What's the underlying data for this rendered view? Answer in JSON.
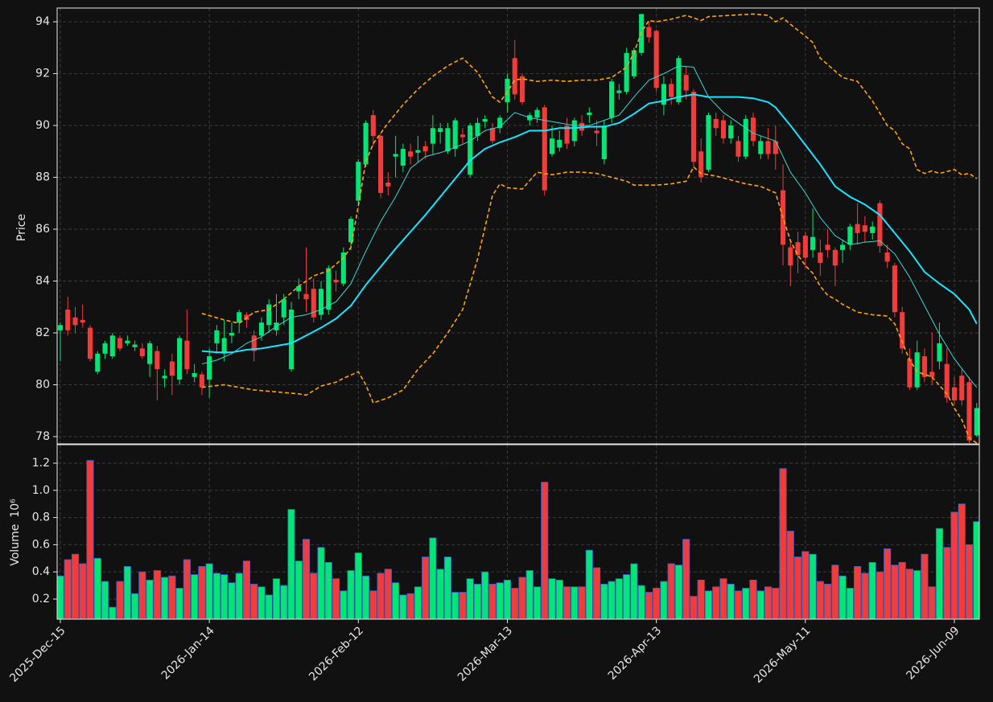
{
  "chart_data": [
    {
      "type": "candlestick",
      "ylabel": "Price",
      "xlim": [
        -0.43,
        123.35
      ],
      "ylim": [
        77.72,
        94.53
      ],
      "yticks": [
        78,
        80,
        82,
        84,
        86,
        88,
        90,
        92,
        94
      ],
      "grid": true,
      "up_color": "#00e676",
      "down_color": "#f23c3c",
      "open": [
        82.1,
        82.9,
        82.6,
        82.5,
        82.2,
        80.5,
        81.2,
        81.1,
        81.8,
        81.6,
        81.45,
        81.4,
        80.8,
        81.3,
        80.25,
        80.9,
        80.2,
        81.7,
        80.3,
        80.4,
        80.2,
        81.6,
        81.2,
        81.9,
        82.4,
        82.7,
        81.9,
        81.9,
        82.3,
        82.1,
        82.6,
        80.6,
        83.6,
        83.5,
        83.7,
        82.7,
        82.9,
        84.05,
        83.9,
        85.5,
        87.1,
        88.5,
        90.4,
        89.6,
        87.8,
        88.8,
        88.45,
        89.0,
        88.95,
        89.2,
        89.3,
        89.75,
        89.0,
        89.1,
        89.65,
        88.1,
        89.6,
        90.15,
        89.9,
        89.9,
        90.9,
        92.6,
        91.9,
        90.2,
        90.3,
        90.7,
        88.9,
        89.15,
        90.0,
        89.4,
        90.1,
        90.4,
        89.8,
        88.7,
        90.3,
        91.25,
        91.3,
        91.9,
        92.8,
        93.8,
        93.65,
        90.8,
        91.6,
        90.9,
        91.95,
        91.3,
        89.0,
        88.3,
        90.25,
        90.2,
        89.5,
        89.4,
        88.8,
        90.3,
        88.9,
        89.4,
        89.4,
        87.5,
        85.3,
        85.5,
        85.75,
        85.2,
        85.1,
        85.4,
        85.2,
        85.2,
        85.4,
        86.2,
        86.15,
        85.85,
        87.0,
        85.1,
        84.6,
        82.8,
        81.0,
        79.9,
        81.1,
        80.5,
        80.9,
        80.8,
        79.9,
        80.35,
        80.1,
        78.05
      ],
      "high": [
        82.4,
        83.4,
        83.0,
        83.1,
        82.3,
        81.3,
        81.7,
        82.0,
        81.9,
        81.9,
        81.7,
        81.6,
        81.7,
        81.5,
        80.6,
        81.2,
        81.9,
        82.9,
        80.8,
        80.5,
        81.4,
        82.3,
        82.5,
        82.4,
        82.9,
        82.8,
        82.1,
        82.6,
        83.3,
        83.5,
        83.5,
        83.2,
        84.1,
        85.3,
        84.1,
        84.0,
        84.6,
        84.4,
        85.3,
        86.5,
        88.7,
        90.2,
        90.6,
        89.7,
        88.2,
        89.6,
        89.3,
        89.3,
        89.6,
        89.4,
        90.4,
        90.1,
        90.1,
        90.3,
        89.9,
        90.1,
        90.3,
        90.4,
        90.1,
        90.4,
        92.0,
        93.3,
        92.0,
        90.5,
        90.7,
        90.8,
        90.0,
        89.8,
        90.3,
        90.3,
        90.4,
        90.7,
        90.2,
        90.2,
        91.8,
        91.6,
        93.0,
        93.0,
        94.3,
        94.0,
        93.7,
        91.9,
        91.8,
        92.7,
        92.3,
        91.4,
        89.5,
        90.5,
        90.5,
        90.4,
        90.2,
        89.6,
        90.4,
        90.5,
        89.6,
        89.9,
        90.0,
        88.5,
        85.5,
        85.9,
        85.9,
        86.8,
        85.6,
        86.0,
        85.3,
        85.6,
        86.2,
        87.0,
        86.5,
        86.3,
        87.1,
        85.4,
        84.7,
        83.0,
        81.4,
        81.7,
        81.4,
        82.0,
        82.4,
        81.4,
        80.3,
        80.6,
        80.3,
        79.3
      ],
      "low": [
        80.9,
        81.9,
        82.0,
        82.2,
        80.9,
        80.4,
        81.0,
        81.0,
        81.3,
        81.5,
        81.3,
        81.0,
        80.3,
        79.4,
        79.9,
        79.6,
        80.0,
        80.4,
        80.1,
        79.6,
        79.5,
        81.2,
        80.9,
        81.6,
        82.0,
        82.2,
        80.9,
        81.7,
        82.0,
        81.9,
        82.3,
        80.5,
        83.3,
        82.8,
        82.4,
        82.5,
        82.7,
        83.6,
        83.8,
        85.2,
        86.9,
        88.4,
        89.2,
        87.2,
        87.3,
        88.0,
        88.2,
        88.5,
        88.6,
        88.7,
        88.9,
        89.3,
        88.9,
        88.8,
        89.3,
        88.0,
        89.4,
        89.9,
        89.3,
        89.7,
        90.5,
        91.0,
        90.8,
        90.0,
        90.1,
        87.3,
        88.8,
        89.0,
        89.1,
        89.2,
        89.6,
        90.1,
        89.2,
        88.5,
        90.1,
        91.0,
        91.2,
        91.8,
        92.7,
        93.2,
        91.3,
        90.4,
        90.8,
        90.8,
        91.0,
        88.4,
        87.8,
        88.2,
        89.6,
        89.3,
        89.3,
        88.6,
        88.7,
        89.2,
        88.7,
        88.7,
        88.3,
        84.6,
        83.8,
        84.3,
        84.5,
        84.9,
        84.2,
        84.9,
        83.8,
        84.7,
        85.2,
        85.4,
        85.5,
        85.6,
        85.1,
        84.5,
        82.6,
        81.2,
        79.8,
        79.8,
        80.1,
        80.0,
        80.6,
        79.3,
        79.2,
        79.2,
        77.75,
        78.0
      ],
      "close": [
        82.3,
        82.1,
        82.3,
        82.4,
        81.0,
        81.2,
        81.6,
        81.9,
        81.4,
        81.7,
        81.55,
        81.1,
        81.6,
        80.6,
        80.35,
        80.35,
        81.8,
        80.6,
        80.45,
        79.9,
        81.1,
        82.1,
        81.8,
        82.0,
        82.8,
        82.5,
        81.3,
        82.4,
        83.1,
        82.4,
        83.3,
        82.9,
        83.8,
        83.3,
        82.6,
        83.7,
        84.5,
        83.95,
        85.1,
        86.4,
        88.6,
        90.1,
        89.6,
        87.4,
        87.65,
        88.9,
        89.1,
        88.8,
        89.05,
        89.0,
        89.9,
        89.9,
        89.9,
        90.2,
        89.55,
        90.0,
        90.1,
        90.25,
        89.4,
        90.3,
        91.8,
        91.2,
        90.9,
        90.4,
        90.6,
        87.5,
        89.5,
        89.45,
        89.3,
        90.2,
        89.8,
        90.5,
        89.7,
        90.0,
        91.7,
        91.35,
        92.8,
        92.9,
        94.3,
        93.4,
        91.45,
        91.6,
        91.1,
        92.6,
        91.35,
        88.6,
        88.0,
        90.4,
        89.9,
        89.5,
        90.0,
        88.8,
        90.25,
        89.4,
        89.4,
        88.9,
        88.9,
        85.4,
        84.6,
        85.0,
        84.9,
        85.7,
        84.7,
        85.2,
        84.6,
        85.4,
        86.1,
        85.85,
        85.9,
        86.1,
        85.35,
        84.75,
        82.8,
        81.4,
        79.9,
        81.25,
        80.3,
        80.3,
        81.6,
        79.5,
        79.4,
        79.4,
        77.85,
        79.1
      ],
      "lines": [
        {
          "color": "#ffa500",
          "dashed": true,
          "width": 1.6,
          "x": [
            19,
            22,
            24,
            26,
            28,
            30,
            32,
            34,
            36,
            38,
            39,
            40,
            41,
            42,
            44,
            46,
            48,
            50,
            52,
            54,
            56,
            58,
            59,
            60,
            61,
            62,
            64,
            66,
            68,
            70,
            72,
            74,
            76,
            77,
            78,
            79,
            80,
            82,
            84,
            86,
            87,
            90,
            93,
            95,
            96,
            97,
            98,
            100,
            101,
            102,
            104,
            105,
            107,
            109,
            111,
            112,
            113,
            114,
            115,
            116,
            117,
            118,
            120,
            121,
            122,
            123
          ],
          "values": [
            82.75,
            82.5,
            82.37,
            82.8,
            82.9,
            83.3,
            83.8,
            84.2,
            84.4,
            84.9,
            85.3,
            86.9,
            88.6,
            89.3,
            90.1,
            90.8,
            91.4,
            91.9,
            92.3,
            92.6,
            92.05,
            91.1,
            90.9,
            91.3,
            91.75,
            91.8,
            91.7,
            91.75,
            91.7,
            91.75,
            91.75,
            91.85,
            92.25,
            92.8,
            93.6,
            94.05,
            94.0,
            94.1,
            94.25,
            94.05,
            94.2,
            94.25,
            94.3,
            94.25,
            94.0,
            94.15,
            93.9,
            93.45,
            93.2,
            92.6,
            92.1,
            91.85,
            91.7,
            90.95,
            90.0,
            89.8,
            89.3,
            89.1,
            88.3,
            88.15,
            88.25,
            88.15,
            88.3,
            88.1,
            88.15,
            87.95
          ]
        },
        {
          "color": "#ffa500",
          "dashed": true,
          "width": 1.6,
          "x": [
            19,
            22,
            24,
            26,
            28,
            30,
            32,
            33,
            35,
            37,
            38,
            40,
            41,
            42,
            44,
            46,
            48,
            50,
            52,
            54,
            56,
            58,
            59,
            60,
            62,
            64,
            66,
            68,
            70,
            72,
            74,
            76,
            77,
            80,
            82,
            84,
            85,
            86,
            88,
            90,
            92,
            94,
            96,
            97,
            98,
            99,
            100,
            101,
            102,
            103,
            104,
            105,
            107,
            109,
            111,
            112,
            113,
            114,
            115,
            117,
            119,
            120,
            121,
            122,
            123
          ],
          "values": [
            79.9,
            80.0,
            79.9,
            79.8,
            79.75,
            79.7,
            79.65,
            79.6,
            79.95,
            80.1,
            80.25,
            80.5,
            80.0,
            79.3,
            79.5,
            79.8,
            80.6,
            81.2,
            82.0,
            82.9,
            84.85,
            87.3,
            87.75,
            87.6,
            87.55,
            88.2,
            88.1,
            88.2,
            88.2,
            88.15,
            88.0,
            87.85,
            87.7,
            87.7,
            87.75,
            87.85,
            88.4,
            88.15,
            88.05,
            87.9,
            87.75,
            87.65,
            87.4,
            86.45,
            85.55,
            85.0,
            84.6,
            84.3,
            83.8,
            83.45,
            83.3,
            83.1,
            82.8,
            82.7,
            82.65,
            82.35,
            81.65,
            80.95,
            80.5,
            80.3,
            79.65,
            79.1,
            78.65,
            77.95,
            77.75
          ]
        },
        {
          "color": "#3dd6d0",
          "dashed": false,
          "width": 1,
          "x": [
            19,
            21,
            23,
            25,
            27,
            29,
            31,
            33,
            35,
            37,
            39,
            41,
            43,
            45,
            47,
            49,
            51,
            53,
            55,
            57,
            59,
            61,
            63,
            65,
            67,
            69,
            71,
            73,
            75,
            77,
            79,
            81,
            83,
            85,
            87,
            89,
            91,
            93,
            95,
            96,
            98,
            100,
            102,
            104,
            106,
            108,
            110,
            112,
            114,
            116,
            118,
            120,
            122,
            123
          ],
          "values": [
            80.8,
            80.95,
            81.2,
            81.6,
            81.85,
            82.25,
            82.6,
            82.7,
            82.9,
            83.2,
            83.9,
            85.15,
            86.3,
            87.25,
            88.35,
            88.8,
            88.95,
            89.15,
            89.4,
            89.8,
            89.95,
            90.5,
            90.3,
            90.2,
            90.1,
            90.0,
            90.0,
            90.2,
            90.4,
            91.1,
            91.75,
            92.0,
            92.3,
            92.25,
            91.1,
            90.5,
            90.1,
            89.7,
            89.5,
            89.4,
            88.2,
            87.4,
            86.45,
            85.75,
            85.4,
            85.5,
            85.55,
            85.05,
            84.15,
            83.05,
            81.95,
            81.0,
            80.25,
            79.9
          ]
        },
        {
          "color": "#18e4ff",
          "dashed": false,
          "width": 2,
          "x": [
            19,
            21,
            23,
            25,
            27,
            29,
            31,
            33,
            35,
            37,
            39,
            41,
            43,
            45,
            47,
            49,
            51,
            53,
            55,
            57,
            59,
            61,
            63,
            65,
            67,
            69,
            71,
            73,
            75,
            77,
            79,
            81,
            83,
            85,
            87,
            89,
            91,
            93,
            95,
            96,
            98,
            100,
            102,
            104,
            106,
            108,
            110,
            112,
            114,
            116,
            118,
            120,
            122,
            123
          ],
          "values": [
            81.3,
            81.25,
            81.25,
            81.35,
            81.4,
            81.5,
            81.6,
            81.9,
            82.2,
            82.55,
            83.05,
            83.85,
            84.55,
            85.25,
            85.9,
            86.55,
            87.25,
            87.95,
            88.65,
            89.1,
            89.35,
            89.55,
            89.8,
            89.8,
            89.9,
            89.9,
            89.95,
            89.95,
            90.1,
            90.45,
            90.85,
            90.95,
            91.1,
            91.2,
            91.1,
            91.1,
            91.1,
            91.05,
            90.9,
            90.7,
            90.0,
            89.25,
            88.5,
            87.65,
            87.25,
            86.95,
            86.55,
            85.85,
            85.15,
            84.35,
            83.9,
            83.5,
            82.9,
            82.35
          ]
        }
      ]
    },
    {
      "type": "bar",
      "ylabel": "Volume",
      "yscale_label": "10⁶",
      "xlim": [
        -0.43,
        123.35
      ],
      "ylim": [
        0.052,
        1.336
      ],
      "yticks": [
        0.2,
        0.4,
        0.6,
        0.8,
        {
          "value": 1,
          "label": "1.0"
        },
        1.2
      ],
      "grid": true,
      "xticks": [
        {
          "value": 0,
          "label": "2025-Dec-15"
        },
        {
          "value": 20,
          "label": "2026-Jan-14"
        },
        {
          "value": 40,
          "label": "2026-Feb-12"
        },
        {
          "value": 60,
          "label": "2026-Mar-13"
        },
        {
          "value": 80,
          "label": "2026-Apr-13"
        },
        {
          "value": 100,
          "label": "2026-May-11"
        },
        {
          "value": 120,
          "label": "2026-Jun-09"
        }
      ],
      "edge_color": "#3a5fc8",
      "values": [
        0.37,
        0.49,
        0.53,
        0.46,
        1.22,
        0.5,
        0.33,
        0.14,
        0.33,
        0.44,
        0.24,
        0.4,
        0.34,
        0.41,
        0.36,
        0.37,
        0.28,
        0.49,
        0.38,
        0.44,
        0.46,
        0.39,
        0.38,
        0.32,
        0.39,
        0.48,
        0.31,
        0.29,
        0.23,
        0.35,
        0.3,
        0.86,
        0.48,
        0.64,
        0.39,
        0.58,
        0.47,
        0.35,
        0.26,
        0.41,
        0.54,
        0.37,
        0.26,
        0.39,
        0.42,
        0.32,
        0.23,
        0.24,
        0.29,
        0.51,
        0.65,
        0.42,
        0.51,
        0.25,
        0.25,
        0.35,
        0.31,
        0.4,
        0.31,
        0.32,
        0.34,
        0.28,
        0.36,
        0.41,
        0.29,
        1.06,
        0.35,
        0.34,
        0.29,
        0.29,
        0.29,
        0.56,
        0.43,
        0.31,
        0.33,
        0.35,
        0.38,
        0.46,
        0.3,
        0.25,
        0.28,
        0.33,
        0.46,
        0.45,
        0.64,
        0.22,
        0.34,
        0.26,
        0.29,
        0.35,
        0.31,
        0.26,
        0.28,
        0.34,
        0.26,
        0.29,
        0.28,
        1.16,
        0.7,
        0.51,
        0.55,
        0.53,
        0.33,
        0.31,
        0.45,
        0.37,
        0.28,
        0.44,
        0.39,
        0.47,
        0.4,
        0.57,
        0.45,
        0.47,
        0.42,
        0.41,
        0.53,
        0.29,
        0.72,
        0.58,
        0.84,
        0.9,
        0.6,
        0.77
      ]
    }
  ]
}
